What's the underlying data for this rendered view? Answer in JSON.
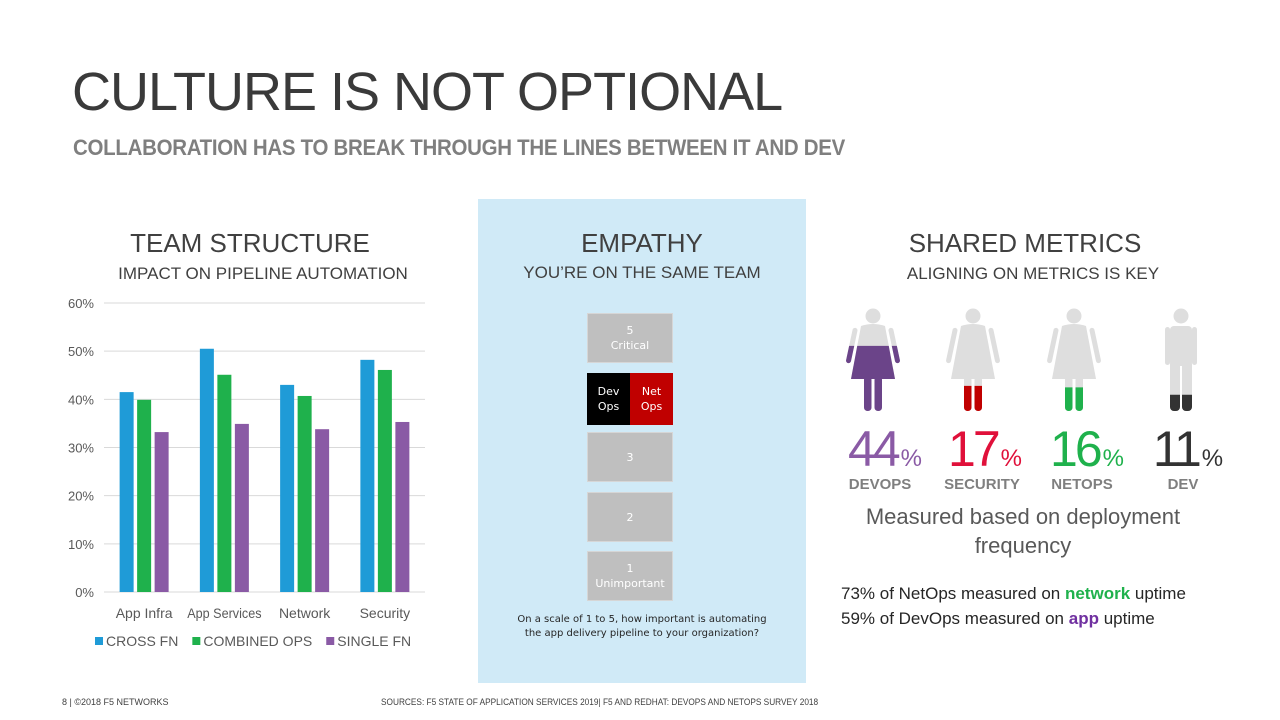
{
  "slide": {
    "title": "CULTURE IS NOT OPTIONAL",
    "subtitle": "COLLABORATION HAS TO BREAK THROUGH THE LINES BETWEEN IT AND DEV"
  },
  "team_structure": {
    "title": "TEAM STRUCTURE",
    "subtitle": "IMPACT ON PIPELINE AUTOMATION"
  },
  "chart_data": {
    "type": "bar",
    "title": "TEAM STRUCTURE",
    "subtitle": "IMPACT ON PIPELINE AUTOMATION",
    "xlabel": "",
    "ylabel": "",
    "categories": [
      "App Infra",
      "App Services",
      "Network",
      "Security"
    ],
    "series": [
      {
        "name": "CROSS FN",
        "color": "#1f9bd7",
        "values": [
          41.5,
          50.5,
          43.0,
          48.2
        ]
      },
      {
        "name": "COMBINED OPS",
        "color": "#1fb14c",
        "values": [
          39.9,
          45.1,
          40.7,
          46.1
        ]
      },
      {
        "name": "SINGLE FN",
        "color": "#8a5aa5",
        "values": [
          33.2,
          34.9,
          33.8,
          35.3
        ]
      }
    ],
    "ylim": [
      0,
      60
    ],
    "yticks": [
      0,
      10,
      20,
      30,
      40,
      50,
      60
    ],
    "ytick_labels": [
      "0%",
      "10%",
      "20%",
      "30%",
      "40%",
      "50%",
      "60%"
    ],
    "grid": true,
    "legend_position": "bottom"
  },
  "empathy": {
    "title": "EMPATHY",
    "subtitle": "YOU’RE ON THE SAME TEAM",
    "scale": [
      {
        "number": "5",
        "label": "Critical"
      },
      {
        "number": "3",
        "label": ""
      },
      {
        "number": "2",
        "label": ""
      },
      {
        "number": "1",
        "label": "Unimportant"
      }
    ],
    "team_box": {
      "devops": {
        "line1": "Dev",
        "line2": "Ops",
        "color": "#000000"
      },
      "netops": {
        "line1": "Net",
        "line2": "Ops",
        "color": "#c00000"
      }
    },
    "question": "On a scale of 1 to 5, how important is automating the app delivery pipeline to your organization?"
  },
  "shared_metrics": {
    "title": "SHARED METRICS",
    "subtitle": "ALIGNING ON METRICS IS KEY",
    "figures": [
      {
        "label": "DEVOPS",
        "value": "44",
        "percent": 44,
        "symbol": "%",
        "figure": "female-icon",
        "color": "#8a5aa5",
        "fill_color": "#6b4489"
      },
      {
        "label": "SECURITY",
        "value": "17",
        "percent": 17,
        "symbol": "%",
        "figure": "female-icon",
        "color": "#e0103a",
        "fill_color": "#c00000"
      },
      {
        "label": "NETOPS",
        "value": "16",
        "percent": 16,
        "symbol": "%",
        "figure": "female-icon",
        "color": "#1fb14c",
        "fill_color": "#1fb14c"
      },
      {
        "label": "DEV",
        "value": "11",
        "percent": 11,
        "symbol": "%",
        "figure": "male-icon",
        "color": "#333333",
        "fill_color": "#333333"
      }
    ],
    "measured": "Measured based on deployment frequency",
    "stats": [
      {
        "prefix": "73% of NetOps measured on ",
        "highlight": "network",
        "suffix": " uptime",
        "color": "#1fb14c"
      },
      {
        "prefix": "59% of DevOps measured on ",
        "highlight": "app",
        "suffix": " uptime",
        "color": "#7030a0"
      }
    ]
  },
  "footer": {
    "left": "8 | ©2018 F5 NETWORKS",
    "sources": "SOURCES: F5 STATE OF APPLICATION SERVICES 2019| F5 AND REDHAT: DEVOPS AND NETOPS SURVEY 2018"
  }
}
